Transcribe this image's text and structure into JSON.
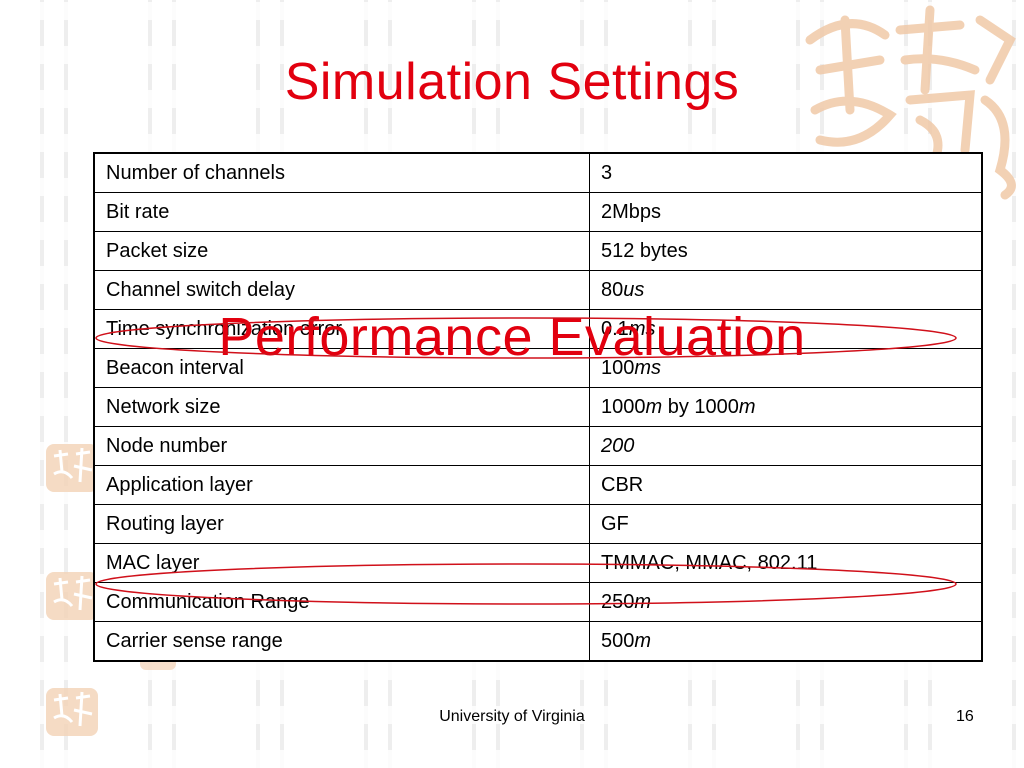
{
  "slide": {
    "title": "Simulation Settings",
    "overlay_text": "Performance Evaluation",
    "footer": "University of Virginia",
    "page_number": "16",
    "colors": {
      "title": "#e2000f",
      "ellipse": "#d0101a",
      "decoration": "#f0c9a8"
    }
  },
  "table": {
    "rows": [
      {
        "key": "Number of channels",
        "value": [
          {
            "t": "3"
          }
        ]
      },
      {
        "key": "Bit rate",
        "value": [
          {
            "t": "2Mbps"
          }
        ]
      },
      {
        "key": "Packet size",
        "value": [
          {
            "t": "512 bytes"
          }
        ]
      },
      {
        "key": "Channel switch delay",
        "value": [
          {
            "t": "80"
          },
          {
            "t": "us",
            "i": true
          }
        ]
      },
      {
        "key": "Time synchronization error",
        "value": [
          {
            "t": "0.1"
          },
          {
            "t": "ms",
            "i": true
          }
        ]
      },
      {
        "key": "Beacon interval",
        "value": [
          {
            "t": "100"
          },
          {
            "t": "ms",
            "i": true
          }
        ]
      },
      {
        "key": "Network size",
        "value": [
          {
            "t": "1000"
          },
          {
            "t": "m",
            "i": true
          },
          {
            "t": " by 1000"
          },
          {
            "t": "m",
            "i": true
          }
        ]
      },
      {
        "key": "Node number",
        "value": [
          {
            "t": "200",
            "i": true
          }
        ]
      },
      {
        "key": "Application layer",
        "value": [
          {
            "t": "CBR"
          }
        ]
      },
      {
        "key": "Routing layer",
        "value": [
          {
            "t": "GF"
          }
        ]
      },
      {
        "key": "MAC layer",
        "value": [
          {
            "t": "TMMAC, MMAC, 802.11"
          }
        ]
      },
      {
        "key": "Communication  Range",
        "value": [
          {
            "t": "250"
          },
          {
            "t": "m",
            "i": true
          }
        ]
      },
      {
        "key": "Carrier sense range",
        "value": [
          {
            "t": "500"
          },
          {
            "t": "m",
            "i": true
          }
        ]
      }
    ]
  }
}
